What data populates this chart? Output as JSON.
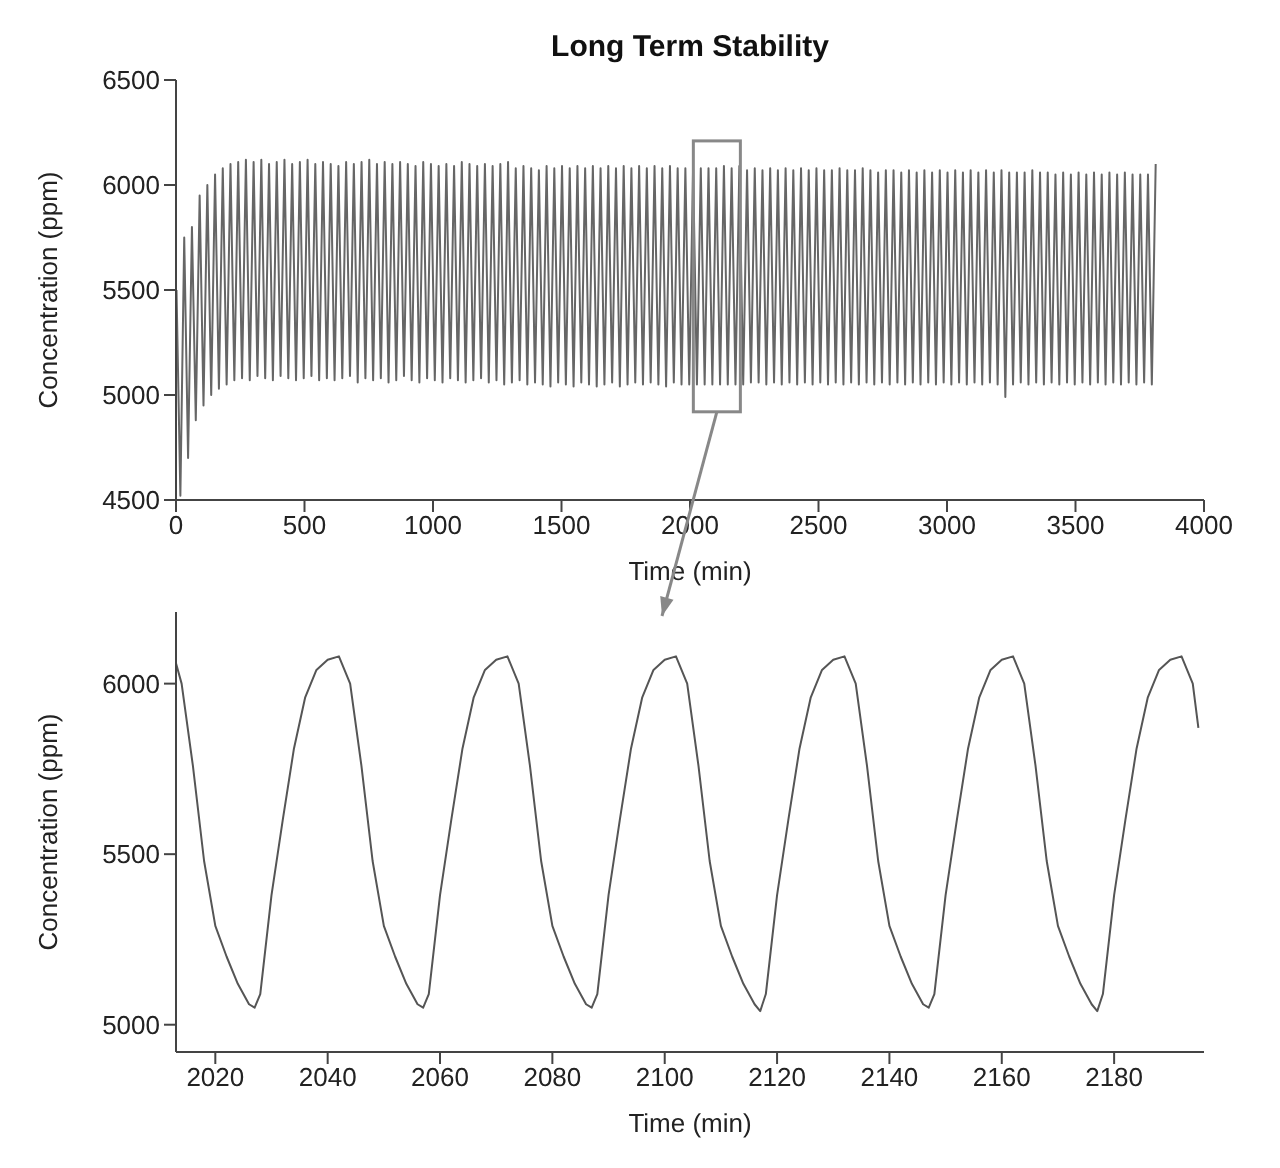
{
  "chart_data": [
    {
      "type": "line",
      "title": "Long Term Stability",
      "xlabel": "Time (min)",
      "ylabel": "Concentration (ppm)",
      "color": "#666666",
      "xlim": [
        0,
        4000
      ],
      "ylim": [
        4500,
        6500
      ],
      "xticks": [
        0,
        500,
        1000,
        1500,
        2000,
        2500,
        3000,
        3500,
        4000
      ],
      "yticks": [
        4500,
        5000,
        5500,
        6000,
        6500
      ],
      "x": [
        2,
        17,
        32,
        47,
        62,
        77,
        92,
        107,
        122,
        137,
        152,
        167,
        182,
        197,
        212,
        227,
        242,
        257,
        272,
        287,
        302,
        317,
        332,
        347,
        362,
        377,
        392,
        407,
        422,
        437,
        452,
        467,
        482,
        497,
        512,
        527,
        542,
        557,
        572,
        587,
        602,
        617,
        632,
        647,
        662,
        677,
        692,
        707,
        722,
        737,
        752,
        767,
        782,
        797,
        812,
        827,
        842,
        857,
        872,
        887,
        902,
        917,
        932,
        947,
        962,
        977,
        992,
        1007,
        1022,
        1037,
        1052,
        1067,
        1082,
        1097,
        1112,
        1127,
        1142,
        1157,
        1172,
        1187,
        1202,
        1217,
        1232,
        1247,
        1262,
        1277,
        1292,
        1307,
        1322,
        1337,
        1352,
        1367,
        1382,
        1397,
        1412,
        1427,
        1442,
        1457,
        1472,
        1487,
        1502,
        1517,
        1532,
        1547,
        1562,
        1577,
        1592,
        1607,
        1622,
        1637,
        1652,
        1667,
        1682,
        1697,
        1712,
        1727,
        1742,
        1757,
        1772,
        1787,
        1802,
        1817,
        1832,
        1847,
        1862,
        1877,
        1892,
        1907,
        1922,
        1937,
        1952,
        1967,
        1982,
        1997,
        2012,
        2027,
        2042,
        2057,
        2072,
        2087,
        2102,
        2117,
        2132,
        2147,
        2162,
        2177,
        2192,
        2207,
        2222,
        2237,
        2252,
        2267,
        2282,
        2297,
        2312,
        2327,
        2342,
        2357,
        2372,
        2387,
        2402,
        2417,
        2432,
        2447,
        2462,
        2477,
        2492,
        2507,
        2522,
        2537,
        2552,
        2567,
        2582,
        2597,
        2612,
        2627,
        2642,
        2657,
        2672,
        2687,
        2702,
        2717,
        2732,
        2747,
        2762,
        2777,
        2792,
        2807,
        2822,
        2837,
        2852,
        2867,
        2882,
        2897,
        2912,
        2927,
        2942,
        2957,
        2972,
        2987,
        3002,
        3017,
        3032,
        3047,
        3062,
        3077,
        3092,
        3107,
        3122,
        3137,
        3152,
        3167,
        3182,
        3197,
        3212,
        3227,
        3242,
        3257,
        3272,
        3287,
        3302,
        3317,
        3332,
        3347,
        3362,
        3377,
        3392,
        3407,
        3422,
        3437,
        3452,
        3467,
        3482,
        3497,
        3512,
        3527,
        3542,
        3557,
        3572,
        3587,
        3602,
        3617,
        3632,
        3647,
        3662,
        3677,
        3692,
        3707,
        3722,
        3737,
        3752,
        3767,
        3782,
        3797,
        3812
      ],
      "values": [
        5500,
        4520,
        5750,
        4700,
        5800,
        4880,
        5950,
        4950,
        6000,
        5000,
        6050,
        5030,
        6080,
        5050,
        6100,
        5070,
        6110,
        5080,
        6120,
        5070,
        6110,
        5090,
        6120,
        5080,
        6100,
        5070,
        6110,
        5090,
        6120,
        5080,
        6100,
        5070,
        6110,
        5080,
        6120,
        5090,
        6100,
        5070,
        6110,
        5080,
        6100,
        5070,
        6090,
        5080,
        6110,
        5090,
        6100,
        5060,
        6110,
        5080,
        6120,
        5070,
        6100,
        5080,
        6110,
        5060,
        6100,
        5070,
        6110,
        5090,
        6100,
        5070,
        6090,
        5060,
        6110,
        5080,
        6100,
        5070,
        6090,
        5060,
        6100,
        5080,
        6090,
        5070,
        6110,
        5060,
        6100,
        5070,
        6090,
        5080,
        6100,
        5060,
        6090,
        5070,
        6100,
        5050,
        6110,
        5060,
        6080,
        5070,
        6090,
        5050,
        6080,
        5060,
        6070,
        5050,
        6090,
        5040,
        6080,
        5060,
        6090,
        5050,
        6080,
        5040,
        6090,
        5060,
        6080,
        5050,
        6090,
        5040,
        6080,
        5050,
        6090,
        5060,
        6080,
        5040,
        6090,
        5050,
        6080,
        5060,
        6090,
        5050,
        6080,
        5060,
        6090,
        5050,
        6080,
        5040,
        6090,
        5060,
        6080,
        5050,
        6080,
        5050,
        6080,
        5050,
        6080,
        5050,
        6080,
        5050,
        6080,
        5050,
        6090,
        5050,
        6080,
        5050,
        6090,
        5050,
        6070,
        5060,
        6080,
        5060,
        6070,
        5050,
        6080,
        5060,
        6070,
        5050,
        6080,
        5060,
        6070,
        5050,
        6080,
        5060,
        6070,
        5050,
        6080,
        5060,
        6070,
        5050,
        6070,
        5060,
        6080,
        5050,
        6070,
        5060,
        6070,
        5050,
        6080,
        5060,
        6070,
        5050,
        6060,
        5060,
        6070,
        5050,
        6070,
        5060,
        6060,
        5050,
        6070,
        5060,
        6060,
        5050,
        6070,
        5060,
        6060,
        5050,
        6070,
        5060,
        6060,
        5050,
        6070,
        5060,
        6060,
        5050,
        6070,
        5060,
        6060,
        5050,
        6070,
        5060,
        6060,
        5050,
        6070,
        4990,
        6060,
        5050,
        6060,
        5060,
        6060,
        5050,
        6070,
        5060,
        6060,
        5050,
        6060,
        5060,
        6050,
        5050,
        6060,
        5060,
        6050,
        5050,
        6060,
        5060,
        6050,
        5050,
        6060,
        5060,
        6050,
        5050,
        6060,
        5060,
        6050,
        5050,
        6060,
        5060,
        6050,
        5050,
        6050,
        5060,
        6050,
        5050,
        6100
      ]
    },
    {
      "type": "line",
      "xlabel": "Time (min)",
      "ylabel": "Concentration (ppm)",
      "color": "#555555",
      "xlim": [
        2013,
        2196
      ],
      "ylim": [
        4920,
        6210
      ],
      "xticks": [
        2020,
        2040,
        2060,
        2080,
        2100,
        2120,
        2140,
        2160,
        2180
      ],
      "yticks": [
        5000,
        5500,
        6000
      ],
      "x": [
        2013,
        2014,
        2016,
        2018,
        2020,
        2022,
        2024,
        2026,
        2027,
        2028,
        2030,
        2032,
        2034,
        2036,
        2038,
        2040,
        2042,
        2044,
        2046,
        2048,
        2050,
        2052,
        2054,
        2056,
        2057,
        2058,
        2060,
        2062,
        2064,
        2066,
        2068,
        2070,
        2072,
        2074,
        2076,
        2078,
        2080,
        2082,
        2084,
        2086,
        2087,
        2088,
        2090,
        2092,
        2094,
        2096,
        2098,
        2100,
        2102,
        2104,
        2106,
        2108,
        2110,
        2112,
        2114,
        2116,
        2117,
        2118,
        2120,
        2122,
        2124,
        2126,
        2128,
        2130,
        2132,
        2134,
        2136,
        2138,
        2140,
        2142,
        2144,
        2146,
        2147,
        2148,
        2150,
        2152,
        2154,
        2156,
        2158,
        2160,
        2162,
        2164,
        2166,
        2168,
        2170,
        2172,
        2174,
        2176,
        2177,
        2178,
        2180,
        2182,
        2184,
        2186,
        2188,
        2190,
        2192,
        2194,
        2195
      ],
      "values": [
        6060,
        6000,
        5760,
        5480,
        5290,
        5200,
        5120,
        5060,
        5050,
        5090,
        5380,
        5600,
        5810,
        5960,
        6040,
        6070,
        6080,
        6000,
        5760,
        5480,
        5290,
        5200,
        5120,
        5060,
        5050,
        5090,
        5380,
        5600,
        5810,
        5960,
        6040,
        6070,
        6080,
        6000,
        5760,
        5480,
        5290,
        5200,
        5120,
        5060,
        5050,
        5090,
        5380,
        5600,
        5810,
        5960,
        6040,
        6070,
        6080,
        6000,
        5760,
        5480,
        5290,
        5200,
        5120,
        5060,
        5040,
        5090,
        5380,
        5600,
        5810,
        5960,
        6040,
        6070,
        6080,
        6000,
        5760,
        5480,
        5290,
        5200,
        5120,
        5060,
        5050,
        5090,
        5380,
        5600,
        5810,
        5960,
        6040,
        6070,
        6080,
        6000,
        5760,
        5480,
        5290,
        5200,
        5120,
        5060,
        5040,
        5090,
        5380,
        5600,
        5810,
        5960,
        6040,
        6070,
        6080,
        6000,
        5870
      ]
    }
  ]
}
